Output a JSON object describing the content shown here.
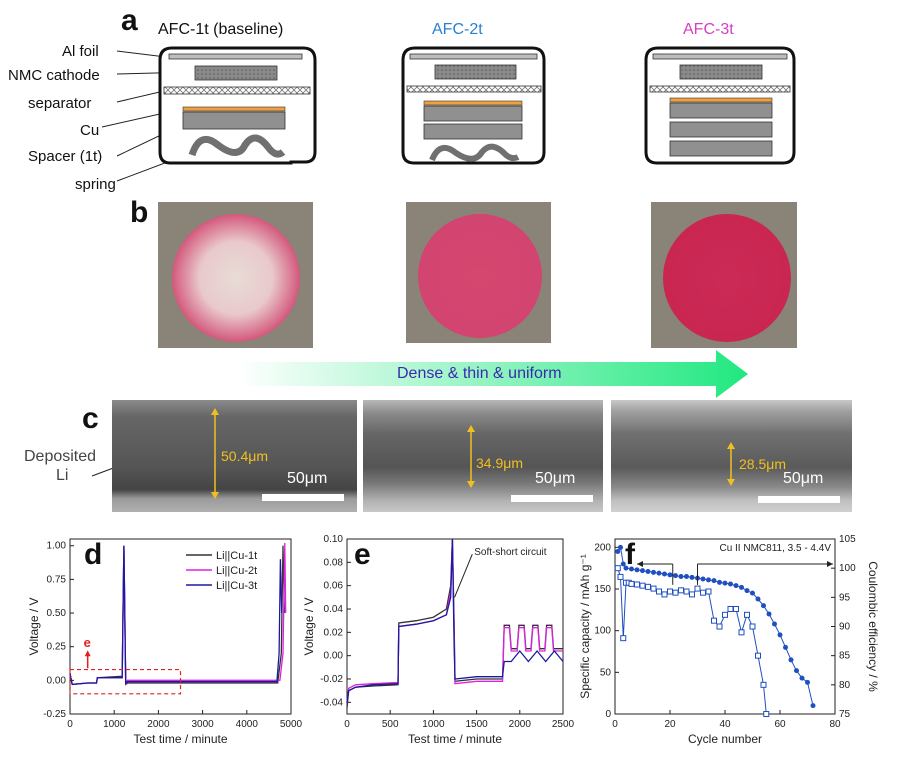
{
  "panel_a": {
    "letter": "a",
    "labels": [
      "Al foil",
      "NMC cathode",
      "separator",
      "Cu",
      "Spacer (1t)",
      "spring"
    ],
    "cells": [
      {
        "title": "AFC-1t (baseline)",
        "color": "#111111",
        "spacers": 1
      },
      {
        "title": "AFC-2t",
        "color": "#2a7fd4",
        "spacers": 2
      },
      {
        "title": "AFC-3t",
        "color": "#d63fc0",
        "spacers": 3
      }
    ]
  },
  "panel_b": {
    "letter": "b",
    "arrow_text": "Dense & thin & uniform"
  },
  "panel_c": {
    "letter": "c",
    "deposited_label_line1": "Deposited",
    "deposited_label_line2": "Li",
    "images": [
      {
        "thickness": "50.4μm",
        "scale": "50μm"
      },
      {
        "thickness": "34.9μm",
        "scale": "50μm"
      },
      {
        "thickness": "28.5μm",
        "scale": "50μm"
      }
    ]
  },
  "panel_d": {
    "letter": "d",
    "inset_label": "e"
  },
  "panel_e": {
    "letter": "e",
    "annotation": "Soft-short circuit"
  },
  "panel_f": {
    "letter": "f",
    "annotation": "Cu II NMC811, 3.5 - 4.4V"
  },
  "chart_data": [
    {
      "type": "line",
      "panel": "d",
      "xlabel": "Test time / minute",
      "ylabel": "Voltage / V",
      "xlim": [
        0,
        5000
      ],
      "ylim": [
        -0.25,
        1.05
      ],
      "xticks": [
        0,
        1000,
        2000,
        3000,
        4000,
        5000
      ],
      "yticks": [
        -0.25,
        0.0,
        0.25,
        0.5,
        0.75,
        1.0
      ],
      "ytick_labels": [
        "-0.25",
        "0.00",
        "0.25",
        "0.50",
        "0.75",
        "1.00"
      ],
      "legend": "top-right",
      "series": [
        {
          "name": "Li||Cu-1t",
          "color": "#333333",
          "x": [
            0,
            50,
            400,
            600,
            620,
            1180,
            1200,
            1220,
            1240,
            1260,
            1300,
            2500,
            4700,
            4780,
            4820,
            4850
          ],
          "y": [
            0.05,
            -0.03,
            -0.02,
            -0.02,
            0.02,
            0.03,
            0.5,
            1.0,
            0.5,
            -0.03,
            -0.02,
            -0.02,
            -0.02,
            0.2,
            1.0,
            0.5
          ]
        },
        {
          "name": "Li||Cu-2t",
          "color": "#e020e0",
          "x": [
            0,
            50,
            400,
            600,
            620,
            1180,
            1200,
            1220,
            1240,
            1260,
            1300,
            2500,
            4750,
            4820,
            4860,
            4880
          ],
          "y": [
            0.05,
            -0.03,
            -0.02,
            -0.02,
            0.02,
            0.02,
            0.5,
            1.0,
            0.5,
            -0.02,
            0.0,
            0.0,
            0.0,
            0.2,
            1.02,
            0.5
          ]
        },
        {
          "name": "Li||Cu-3t",
          "color": "#1a1aa0",
          "x": [
            0,
            50,
            400,
            600,
            620,
            1180,
            1200,
            1220,
            1240,
            1260,
            1300,
            2500,
            4680,
            4730,
            4760,
            4790
          ],
          "y": [
            0.05,
            -0.03,
            -0.02,
            -0.02,
            0.02,
            0.02,
            0.5,
            1.0,
            0.5,
            -0.02,
            -0.01,
            -0.01,
            -0.01,
            0.2,
            0.9,
            0.5
          ]
        }
      ]
    },
    {
      "type": "line",
      "panel": "e",
      "xlabel": "Test time / minute",
      "ylabel": "Voltage / V",
      "xlim": [
        0,
        2500
      ],
      "ylim": [
        -0.05,
        0.1
      ],
      "xticks": [
        0,
        500,
        1000,
        1500,
        2000,
        2500
      ],
      "yticks": [
        -0.04,
        -0.02,
        0.0,
        0.02,
        0.04,
        0.06,
        0.08,
        0.1
      ],
      "ytick_labels": [
        "-0.04",
        "-0.02",
        "0.00",
        "0.02",
        "0.04",
        "0.06",
        "0.08",
        "0.10"
      ],
      "series": [
        {
          "name": "Li||Cu-1t",
          "color": "#333333",
          "x": [
            0,
            20,
            100,
            300,
            590,
            600,
            800,
            1000,
            1150,
            1200,
            1220,
            1240,
            1250,
            1500,
            1800,
            1820,
            1880,
            1900,
            1970,
            1990,
            2050,
            2070,
            2130,
            2150,
            2210,
            2230,
            2290,
            2310,
            2370,
            2390,
            2450,
            2500
          ],
          "y": [
            -0.045,
            -0.03,
            -0.027,
            -0.026,
            -0.025,
            0.028,
            0.03,
            0.033,
            0.04,
            0.06,
            0.1,
            0.03,
            -0.022,
            -0.02,
            -0.02,
            0.026,
            0.026,
            0.006,
            0.006,
            0.026,
            0.026,
            0.006,
            0.006,
            0.026,
            0.026,
            0.006,
            0.006,
            0.026,
            0.026,
            0.006,
            0.006,
            0.006
          ]
        },
        {
          "name": "Li||Cu-2t",
          "color": "#e020e0",
          "x": [
            0,
            20,
            100,
            300,
            590,
            600,
            800,
            1000,
            1150,
            1200,
            1220,
            1240,
            1250,
            1500,
            1800,
            1820,
            1880,
            1900,
            1970,
            1990,
            2050,
            2070,
            2130,
            2150,
            2210,
            2230,
            2290,
            2310,
            2370,
            2390,
            2450,
            2500
          ],
          "y": [
            -0.04,
            -0.028,
            -0.025,
            -0.024,
            -0.023,
            0.025,
            0.027,
            0.03,
            0.035,
            0.055,
            0.1,
            0.02,
            -0.024,
            -0.022,
            -0.022,
            0.024,
            0.024,
            0.004,
            0.004,
            0.024,
            0.024,
            0.004,
            0.004,
            0.024,
            0.024,
            0.004,
            0.004,
            0.024,
            0.024,
            0.004,
            0.004,
            0.004
          ]
        },
        {
          "name": "Li||Cu-3t",
          "color": "#1a1aa0",
          "x": [
            0,
            20,
            100,
            300,
            590,
            600,
            800,
            1000,
            1150,
            1200,
            1220,
            1240,
            1250,
            1500,
            1800,
            1820,
            1900,
            2000,
            2100,
            2200,
            2300,
            2400,
            2500
          ],
          "y": [
            -0.04,
            -0.03,
            -0.027,
            -0.025,
            -0.024,
            0.025,
            0.027,
            0.03,
            0.035,
            0.05,
            0.1,
            0.01,
            -0.02,
            -0.018,
            -0.018,
            -0.005,
            -0.005,
            0.004,
            -0.005,
            0.004,
            -0.005,
            0.004,
            -0.005
          ]
        }
      ]
    },
    {
      "type": "scatter",
      "panel": "f",
      "xlabel": "Cycle number",
      "ylabel": "Specific capacity / mAh g⁻¹",
      "y2label": "Coulombic efficiency / %",
      "xlim": [
        0,
        80
      ],
      "ylim": [
        0,
        210
      ],
      "y2lim": [
        75,
        105
      ],
      "xticks": [
        0,
        20,
        40,
        60,
        80
      ],
      "yticks": [
        0,
        50,
        100,
        150,
        200
      ],
      "y2ticks": [
        75,
        80,
        85,
        90,
        95,
        100,
        105
      ],
      "series": [
        {
          "name": "capacity",
          "color": "#1f4fc0",
          "marker": "filled-circle",
          "x": [
            1,
            2,
            3,
            4,
            6,
            8,
            10,
            12,
            14,
            16,
            18,
            20,
            22,
            24,
            26,
            28,
            30,
            32,
            34,
            36,
            38,
            40,
            42,
            44,
            46,
            48,
            50,
            52,
            54,
            56,
            58,
            60,
            62,
            64,
            66,
            68,
            70,
            72
          ],
          "y": [
            195,
            200,
            180,
            175,
            174,
            173,
            172,
            171,
            170,
            169,
            168,
            167,
            166,
            165,
            165,
            164,
            163,
            162,
            161,
            160,
            158,
            157,
            156,
            154,
            152,
            148,
            145,
            138,
            130,
            120,
            108,
            95,
            80,
            65,
            52,
            43,
            38,
            10
          ]
        },
        {
          "name": "coulombic efficiency",
          "color": "#1f4fc0",
          "marker": "open-square",
          "x": [
            1,
            2,
            3,
            4,
            5,
            6,
            8,
            10,
            12,
            14,
            16,
            18,
            20,
            22,
            24,
            26,
            28,
            30,
            32,
            34,
            36,
            38,
            40,
            42,
            44,
            46,
            48,
            50,
            52,
            54,
            55
          ],
          "y": [
            100,
            98.5,
            88,
            97.5,
            97.5,
            97.3,
            97.2,
            97,
            96.8,
            96.5,
            96,
            95.5,
            96,
            95.8,
            96.2,
            96,
            95.5,
            96.5,
            95.8,
            96,
            91,
            90,
            92,
            93,
            93,
            89,
            92,
            90,
            85,
            80,
            75
          ]
        }
      ]
    }
  ]
}
